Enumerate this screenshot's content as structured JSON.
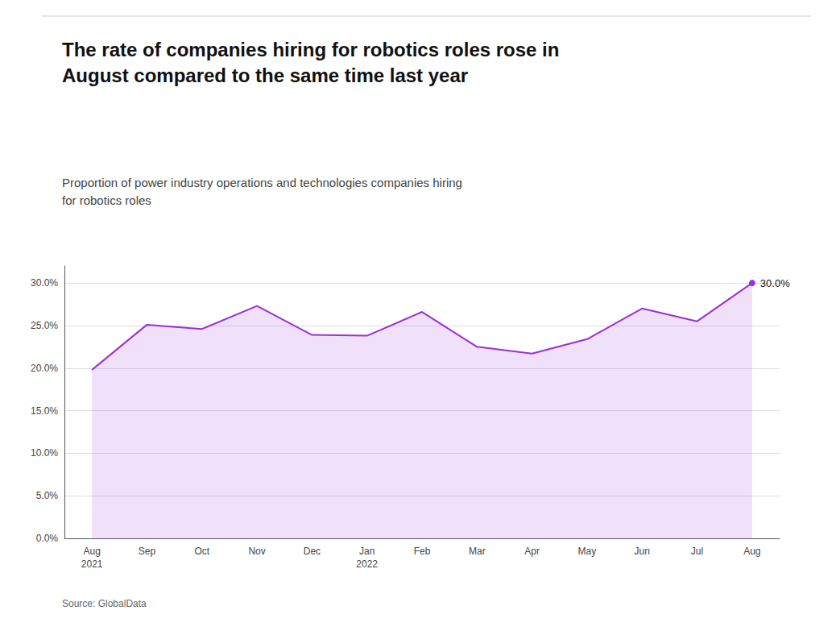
{
  "chart_data": {
    "type": "line",
    "title": "The rate of companies hiring for robotics roles rose in\nAugust compared to the same time last year",
    "subtitle": "Proportion of power industry operations and technologies companies hiring\nfor robotics roles",
    "source": "Source: GlobalData",
    "categories": [
      "Aug\n2021",
      "Sep",
      "Oct",
      "Nov",
      "Dec",
      "Jan\n2022",
      "Feb",
      "Mar",
      "Apr",
      "May",
      "Jun",
      "Jul",
      "Aug"
    ],
    "values": [
      19.8,
      25.1,
      24.6,
      27.3,
      23.9,
      23.8,
      26.6,
      22.5,
      21.7,
      23.4,
      27.0,
      25.5,
      30.0
    ],
    "color": "#9b30d9",
    "annotation": "30.0%",
    "ylim": [
      0,
      32
    ],
    "yticks": [
      {
        "value": 0,
        "label": "0.0%"
      },
      {
        "value": 5,
        "label": "5.0%"
      },
      {
        "value": 10,
        "label": "10.0%"
      },
      {
        "value": 15,
        "label": "15.0%"
      },
      {
        "value": 20,
        "label": "20.0%"
      },
      {
        "value": 25,
        "label": "25.0%"
      },
      {
        "value": 30,
        "label": "30.0%"
      }
    ],
    "grid": true
  }
}
